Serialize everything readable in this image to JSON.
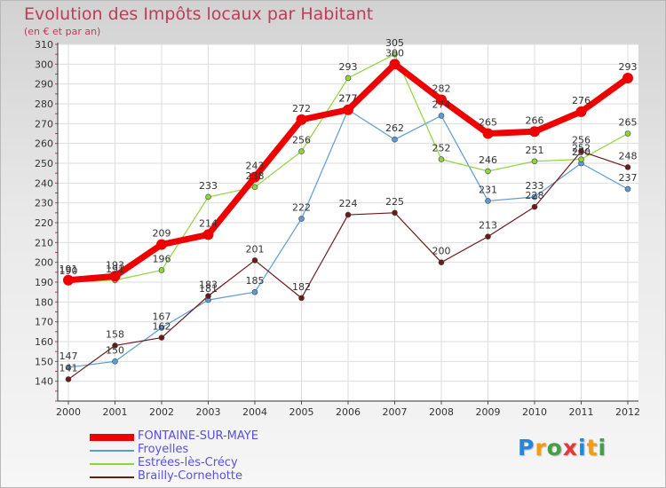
{
  "title": "Evolution des Impôts locaux par Habitant",
  "subtitle": "(en € et par an)",
  "logo": {
    "text": "Proxiti",
    "letters": [
      "P",
      "r",
      "o",
      "x",
      "i",
      "t",
      "i"
    ],
    "colors": [
      "#1e88e5",
      "#f39c12",
      "#43a047",
      "#e53935",
      "#1e88e5",
      "#f39c12",
      "#43a047"
    ]
  },
  "chart_data": {
    "type": "line",
    "title": "Evolution des Impôts locaux par Habitant",
    "subtitle": "(en € et par an)",
    "xlabel": "",
    "ylabel": "",
    "ylim": [
      130,
      310
    ],
    "yticks": [
      140,
      150,
      160,
      170,
      180,
      190,
      200,
      210,
      220,
      230,
      240,
      250,
      260,
      270,
      280,
      290,
      300,
      310
    ],
    "categories": [
      "2000",
      "2001",
      "2002",
      "2003",
      "2004",
      "2005",
      "2006",
      "2007",
      "2008",
      "2009",
      "2010",
      "2011",
      "2012"
    ],
    "grid": true,
    "legend_position": "bottom-left",
    "series": [
      {
        "name": "FONTAINE-SUR-MAYE",
        "color": "#ee0000",
        "width": 7,
        "marker": 6,
        "values": [
          191,
          193,
          209,
          214,
          243,
          272,
          277,
          300,
          282,
          265,
          266,
          276,
          293
        ]
      },
      {
        "name": "Froyelles",
        "color": "#5b9bd5",
        "width": 1.2,
        "marker": 3,
        "values": [
          147,
          150,
          167,
          181,
          185,
          222,
          277,
          262,
          274,
          231,
          233,
          250,
          237
        ]
      },
      {
        "name": "Estrées-lès-Crécy",
        "color": "#8ed53a",
        "width": 1.2,
        "marker": 3,
        "values": [
          190,
          191,
          196,
          233,
          238,
          256,
          293,
          305,
          252,
          246,
          251,
          252,
          265
        ]
      },
      {
        "name": "Brailly-Cornehotte",
        "color": "#6b1a1a",
        "width": 1.2,
        "marker": 3,
        "values": [
          141,
          158,
          162,
          183,
          201,
          182,
          224,
          225,
          200,
          213,
          228,
          256,
          248
        ]
      }
    ]
  }
}
